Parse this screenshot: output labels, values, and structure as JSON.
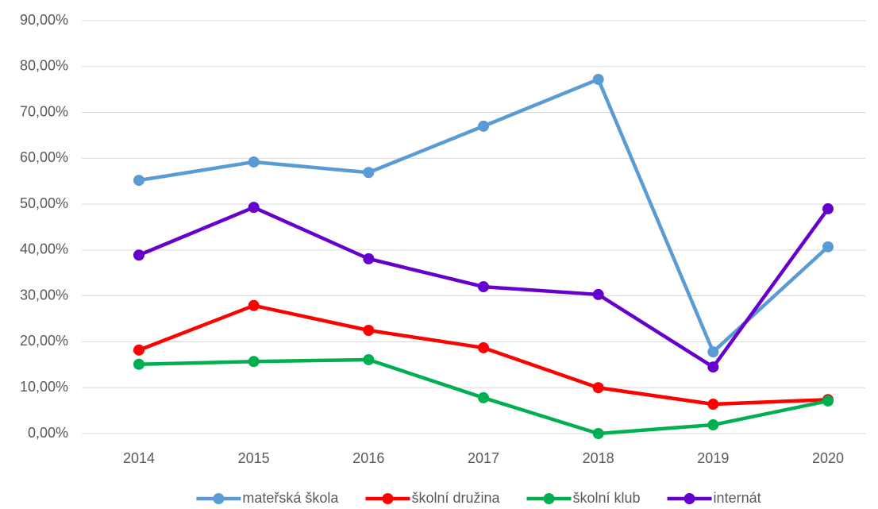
{
  "chart_data": {
    "type": "line",
    "categories": [
      "2014",
      "2015",
      "2016",
      "2017",
      "2018",
      "2019",
      "2020"
    ],
    "series": [
      {
        "name": "mateřská škola",
        "color": "#5b9bd5",
        "values": [
          55.2,
          59.2,
          56.9,
          67.0,
          77.2,
          17.8,
          40.7
        ]
      },
      {
        "name": "školní družina",
        "color": "#ff0000",
        "values": [
          18.2,
          27.9,
          22.5,
          18.7,
          10.0,
          6.4,
          7.4
        ]
      },
      {
        "name": "školní klub",
        "color": "#00b050",
        "values": [
          15.1,
          15.7,
          16.1,
          7.8,
          0,
          1.9,
          7.1
        ]
      },
      {
        "name": "internát",
        "color": "#6600cc",
        "values": [
          38.9,
          49.3,
          38.1,
          32.0,
          30.3,
          14.5,
          49.0
        ]
      }
    ],
    "ylim": [
      0,
      90
    ],
    "yticks": [
      {
        "value": 0,
        "label": "0,00%"
      },
      {
        "value": 10,
        "label": "10,00%"
      },
      {
        "value": 20,
        "label": "20,00%"
      },
      {
        "value": 30,
        "label": "30,00%"
      },
      {
        "value": 40,
        "label": "40,00%"
      },
      {
        "value": 50,
        "label": "50,00%"
      },
      {
        "value": 60,
        "label": "60,00%"
      },
      {
        "value": 70,
        "label": "70,00%"
      },
      {
        "value": 80,
        "label": "80,00%"
      },
      {
        "value": 90,
        "label": "90,00%"
      }
    ],
    "grid": true,
    "legend": "bottom"
  }
}
